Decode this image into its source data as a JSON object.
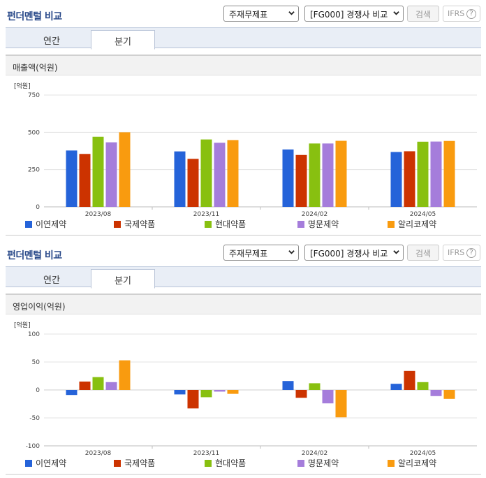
{
  "sections": [
    {
      "title": "펀더멘털 비교",
      "select1": "주재무제표",
      "select2": "[FG000] 경쟁사 비교",
      "search_button": "검색",
      "ifrs_label": "IFRS",
      "ifrs_help": "?",
      "tabs": [
        {
          "label": "연간"
        },
        {
          "label": "분기"
        }
      ],
      "active_tab": 1,
      "metric_label": "매출액(억원)",
      "chart_data": {
        "type": "bar",
        "unit": "[억원]",
        "categories": [
          "2023/08",
          "2023/11",
          "2024/02",
          "2024/05"
        ],
        "ylim": [
          0,
          750
        ],
        "yticks": [
          0,
          250,
          500,
          750
        ],
        "series": [
          {
            "name": "이연제약",
            "color": "#2563d9",
            "values": [
              378,
              372,
              385,
              368
            ]
          },
          {
            "name": "국제약품",
            "color": "#cc3300",
            "values": [
              355,
              322,
              348,
              373
            ]
          },
          {
            "name": "현대약품",
            "color": "#88c010",
            "values": [
              470,
              452,
              425,
              437
            ]
          },
          {
            "name": "명문제약",
            "color": "#a57ddb",
            "values": [
              433,
              430,
              425,
              438
            ]
          },
          {
            "name": "알리코제약",
            "color": "#f99b0f",
            "values": [
              500,
              448,
              443,
              442
            ]
          }
        ]
      }
    },
    {
      "title": "펀더멘털 비교",
      "select1": "주재무제표",
      "select2": "[FG000] 경쟁사 비교",
      "search_button": "검색",
      "ifrs_label": "IFRS",
      "ifrs_help": "?",
      "tabs": [
        {
          "label": "연간"
        },
        {
          "label": "분기"
        }
      ],
      "active_tab": 1,
      "metric_label": "영업이익(억원)",
      "chart_data": {
        "type": "bar",
        "unit": "[억원]",
        "categories": [
          "2023/08",
          "2023/11",
          "2024/02",
          "2024/05"
        ],
        "ylim": [
          -100,
          100
        ],
        "yticks": [
          -100,
          -50,
          0,
          50,
          100
        ],
        "series": [
          {
            "name": "이연제약",
            "color": "#2563d9",
            "values": [
              -9,
              -8,
              16,
              11
            ]
          },
          {
            "name": "국제약품",
            "color": "#cc3300",
            "values": [
              15,
              -33,
              -14,
              34
            ]
          },
          {
            "name": "현대약품",
            "color": "#88c010",
            "values": [
              23,
              -13,
              12,
              14
            ]
          },
          {
            "name": "명문제약",
            "color": "#a57ddb",
            "values": [
              14,
              -3,
              -24,
              -11
            ]
          },
          {
            "name": "알리코제약",
            "color": "#f99b0f",
            "values": [
              53,
              -7,
              -49,
              -16
            ]
          }
        ]
      }
    }
  ]
}
